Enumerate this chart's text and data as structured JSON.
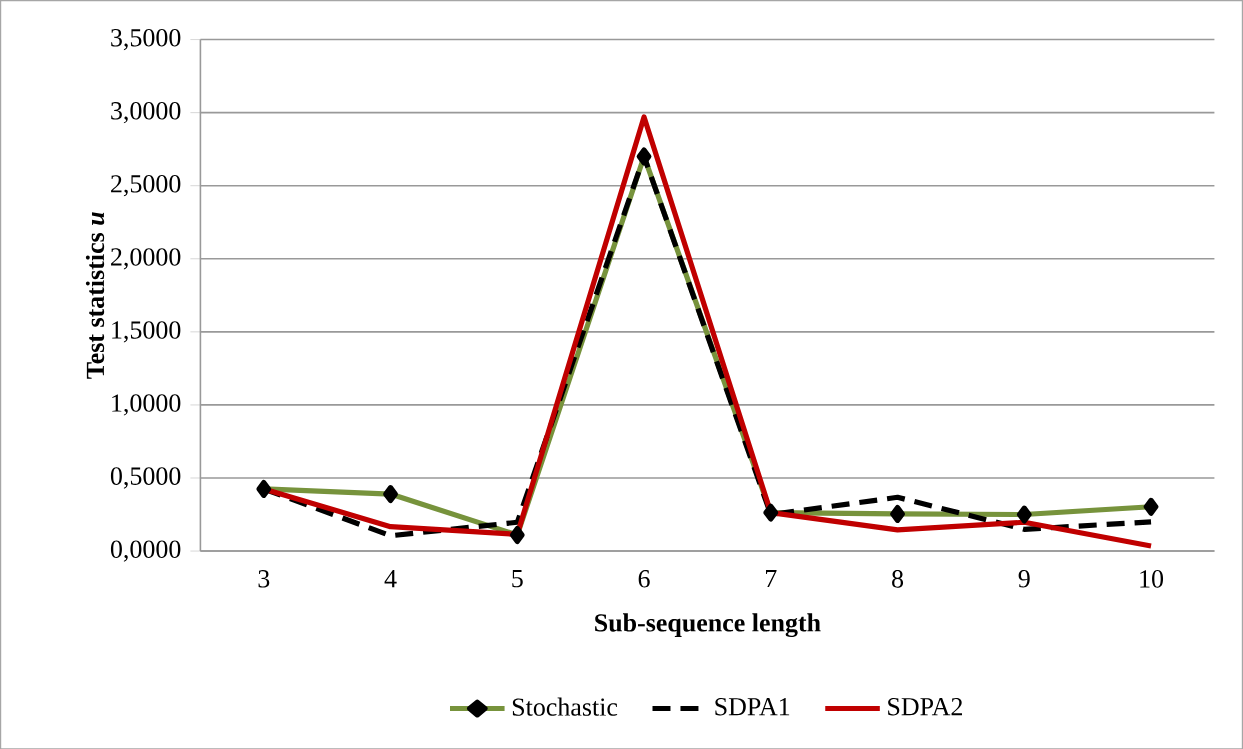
{
  "chart_data": {
    "type": "line",
    "xlabel": "Sub-sequence length",
    "ylabel": "Test statistics *u*",
    "categories": [
      "3",
      "4",
      "5",
      "6",
      "7",
      "8",
      "9",
      "10"
    ],
    "series": [
      {
        "name": "Stochastic",
        "color": "#77933c",
        "marker": "diamond",
        "line_style": "solid",
        "values": [
          0.425,
          0.39,
          0.11,
          2.7,
          0.263,
          0.254,
          0.25,
          0.303
        ]
      },
      {
        "name": "SDPA1",
        "color": "#000000",
        "marker": "none",
        "line_style": "dashed",
        "values": [
          0.425,
          0.105,
          0.197,
          2.7,
          0.25,
          0.368,
          0.149,
          0.2
        ]
      },
      {
        "name": "SDPA2",
        "color": "#c00000",
        "marker": "none",
        "line_style": "solid",
        "values": [
          0.425,
          0.167,
          0.114,
          2.97,
          0.263,
          0.145,
          0.197,
          0.035
        ]
      }
    ],
    "ylim": [
      0,
      3.5
    ],
    "yticks": [
      {
        "value": 0,
        "label": "0,0000"
      },
      {
        "value": 0.5,
        "label": "0,5000"
      },
      {
        "value": 1,
        "label": "1,0000"
      },
      {
        "value": 1.5,
        "label": "1,5000"
      },
      {
        "value": 2,
        "label": "2,0000"
      },
      {
        "value": 2.5,
        "label": "2,5000"
      },
      {
        "value": 3,
        "label": "3,0000"
      },
      {
        "value": 3.5,
        "label": "3,5000"
      }
    ],
    "grid": "y",
    "legend": "bottom"
  }
}
